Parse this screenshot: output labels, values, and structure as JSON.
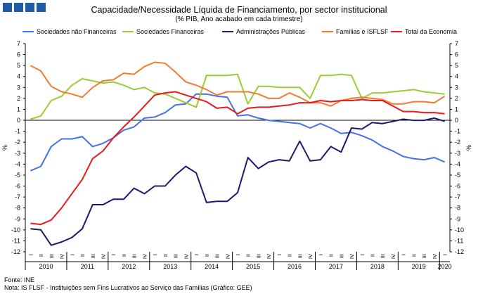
{
  "header": {
    "title": "Capacidade/Necessidade Líquida de Financiamento, por sector institucional",
    "subtitle": "(% PIB, Ano acabado em cada trimestre)"
  },
  "footer": {
    "source": "Fonte: INE",
    "note": "Nota: IS FLSF - Instituições sem Fins Lucrativos ao Serviço das Famílias (Gráfico: GEE)"
  },
  "chart_data": {
    "type": "line",
    "title": "Capacidade/Necessidade Líquida de Financiamento, por sector institucional",
    "subtitle": "(% PIB, Ano acabado em cada trimestre)",
    "ylabel": "%",
    "ylim": [
      -12,
      7
    ],
    "yticks": [
      7,
      6,
      5,
      4,
      3,
      2,
      1,
      0,
      -1,
      -2,
      -3,
      -4,
      -5,
      -6,
      -7,
      -8,
      -9,
      -10,
      -11,
      -12
    ],
    "grid": false,
    "legend": "top",
    "quarter_labels": [
      "I",
      "II",
      "III",
      "IV"
    ],
    "years": [
      "2010",
      "2011",
      "2012",
      "2013",
      "2014",
      "2015",
      "2016",
      "2017",
      "2018",
      "2019",
      "2020"
    ],
    "x": [
      "2010 I",
      "2010 II",
      "2010 III",
      "2010 IV",
      "2011 I",
      "2011 II",
      "2011 III",
      "2011 IV",
      "2012 I",
      "2012 II",
      "2012 III",
      "2012 IV",
      "2013 I",
      "2013 II",
      "2013 III",
      "2013 IV",
      "2014 I",
      "2014 II",
      "2014 III",
      "2014 IV",
      "2015 I",
      "2015 II",
      "2015 III",
      "2015 IV",
      "2016 I",
      "2016 II",
      "2016 III",
      "2016 IV",
      "2017 I",
      "2017 II",
      "2017 III",
      "2017 IV",
      "2018 I",
      "2018 II",
      "2018 III",
      "2018 IV",
      "2019 I",
      "2019 II",
      "2019 III",
      "2019 IV",
      "2020 I"
    ],
    "series": [
      {
        "name": "Sociedades não Financeiras",
        "color": "#4472e0",
        "values": [
          -4.6,
          -4.2,
          -2.4,
          -1.7,
          -1.7,
          -1.5,
          -2.4,
          -2.1,
          -1.6,
          -0.9,
          -0.6,
          0.2,
          0.3,
          0.7,
          1.4,
          1.5,
          2.4,
          2.4,
          2.2,
          2.1,
          0.4,
          0.5,
          0.2,
          0.0,
          -0.1,
          -0.2,
          -0.3,
          -0.7,
          -0.3,
          -0.7,
          -1.2,
          -1.1,
          -1.4,
          -1.8,
          -2.4,
          -2.8,
          -3.3,
          -3.5,
          -3.6,
          -3.4,
          -3.8
        ]
      },
      {
        "name": "Sociedades Financeiras",
        "color": "#9acd32",
        "values": [
          0.1,
          0.4,
          1.8,
          2.2,
          3.2,
          3.8,
          3.6,
          3.4,
          3.5,
          3.2,
          2.8,
          3.0,
          2.5,
          2.4,
          2.0,
          1.6,
          1.2,
          4.1,
          4.1,
          4.1,
          4.2,
          1.5,
          3.1,
          3.1,
          3.0,
          3.0,
          3.0,
          2.0,
          4.1,
          4.1,
          4.2,
          4.1,
          2.0,
          2.5,
          2.5,
          2.6,
          2.7,
          2.8,
          2.6,
          2.5,
          2.4
        ]
      },
      {
        "name": "Administrações Públicas",
        "color": "#1a1a6e",
        "values": [
          -9.9,
          -10.0,
          -11.4,
          -11.1,
          -10.7,
          -9.9,
          -7.7,
          -7.7,
          -7.2,
          -7.2,
          -6.2,
          -6.7,
          -6.0,
          -6.0,
          -5.0,
          -4.2,
          -4.8,
          -7.5,
          -7.4,
          -7.4,
          -6.6,
          -3.4,
          -4.4,
          -3.8,
          -3.6,
          -3.7,
          -1.9,
          -3.7,
          -3.6,
          -2.4,
          -2.9,
          -0.7,
          -0.8,
          -0.2,
          -0.3,
          -0.1,
          0.1,
          0.0,
          0.0,
          0.2,
          -0.1
        ]
      },
      {
        "name": "Famílias e ISFLSF",
        "color": "#ee7d31",
        "values": [
          5.0,
          4.5,
          3.1,
          2.6,
          2.4,
          2.1,
          3.0,
          3.6,
          3.7,
          4.3,
          4.2,
          4.9,
          5.3,
          5.2,
          4.4,
          3.5,
          3.2,
          2.8,
          2.3,
          2.6,
          2.6,
          2.6,
          2.4,
          2.0,
          2.0,
          2.5,
          2.1,
          1.6,
          1.6,
          1.3,
          1.8,
          2.0,
          2.1,
          2.0,
          1.9,
          1.5,
          1.5,
          1.7,
          1.7,
          1.6,
          2.2
        ]
      },
      {
        "name": "Total da Economia",
        "color": "#e41a1c",
        "values": [
          -9.4,
          -9.5,
          -9.1,
          -8.0,
          -6.7,
          -5.4,
          -3.5,
          -2.8,
          -1.6,
          -0.6,
          0.3,
          1.3,
          2.3,
          2.5,
          2.6,
          2.3,
          2.0,
          1.7,
          1.1,
          1.2,
          0.6,
          1.1,
          1.2,
          1.2,
          1.3,
          1.4,
          1.6,
          1.6,
          1.8,
          1.7,
          1.8,
          1.8,
          1.9,
          1.8,
          1.8,
          1.3,
          0.8,
          0.8,
          0.7,
          0.7,
          0.6
        ]
      }
    ]
  }
}
